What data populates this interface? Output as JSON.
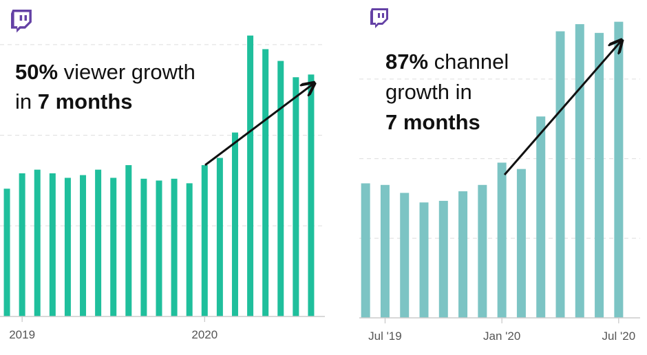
{
  "chart_data": [
    {
      "type": "bar",
      "color": "#1fbf9c",
      "grid": true,
      "categories": [
        null,
        "2019",
        null,
        null,
        null,
        null,
        null,
        null,
        null,
        null,
        null,
        null,
        null,
        "2020",
        null,
        null,
        null,
        null,
        null,
        null,
        null
      ],
      "values": [
        1.41,
        1.58,
        1.62,
        1.58,
        1.53,
        1.56,
        1.62,
        1.53,
        1.67,
        1.52,
        1.5,
        1.52,
        1.47,
        1.67,
        1.75,
        2.03,
        3.1,
        2.95,
        2.82,
        2.64,
        2.67
      ],
      "ylim": [
        0,
        3.2
      ],
      "yticks": [
        1,
        2,
        3
      ],
      "annotation": [
        [
          {
            "text": "50%",
            "bold": true
          },
          {
            "text": " viewer growth",
            "bold": false
          }
        ],
        [
          {
            "text": "in ",
            "bold": false
          },
          {
            "text": "7 months",
            "bold": true
          }
        ]
      ]
    },
    {
      "type": "bar",
      "color": "#7cc4c4",
      "grid": true,
      "categories": [
        null,
        "Jul '19",
        null,
        null,
        null,
        null,
        null,
        "Jan '20",
        null,
        null,
        null,
        null,
        null,
        "Jul '20"
      ],
      "values": [
        1.69,
        1.67,
        1.57,
        1.45,
        1.47,
        1.59,
        1.67,
        1.95,
        1.87,
        2.53,
        3.6,
        3.69,
        3.58,
        3.72
      ],
      "ylim": [
        0,
        3.9
      ],
      "yticks": [
        1,
        2,
        3
      ],
      "annotation": [
        [
          {
            "text": "87%",
            "bold": true
          },
          {
            "text": " channel",
            "bold": false
          }
        ],
        [
          {
            "text": "growth in",
            "bold": false
          }
        ],
        [
          {
            "text": "7 months",
            "bold": true
          }
        ]
      ]
    }
  ]
}
